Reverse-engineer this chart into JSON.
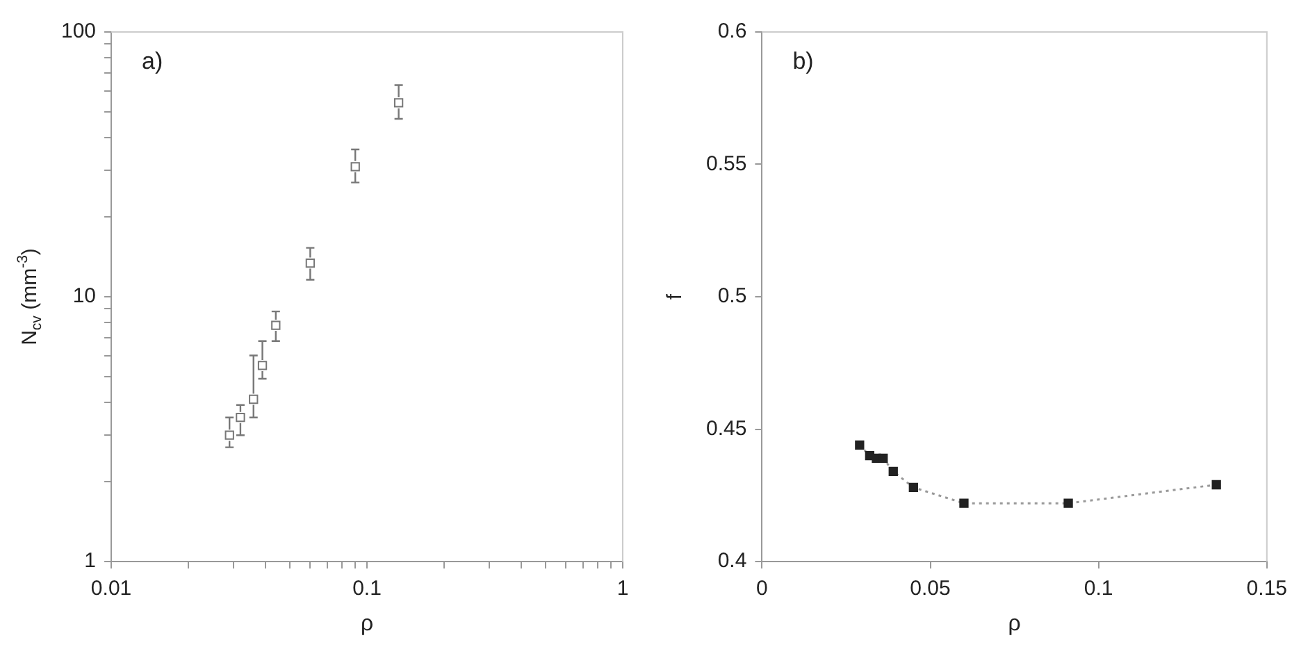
{
  "chart_data": [
    {
      "type": "scatter",
      "xlabel": "ρ",
      "ylabel": "N$_{cv}$ (mm$^{-3}$)",
      "annotations": [
        "a)"
      ],
      "log": "xy",
      "grid": false,
      "legend": false,
      "marker": "square",
      "xlim": [
        0.01,
        1
      ],
      "ylim": [
        1,
        100
      ],
      "xticks": [
        0.01,
        {
          "value": 0.02,
          "label": null
        },
        {
          "value": 0.03,
          "label": null
        },
        {
          "value": 0.04,
          "label": null
        },
        {
          "value": 0.05,
          "label": null
        },
        {
          "value": 0.06,
          "label": null
        },
        {
          "value": 0.07,
          "label": null
        },
        {
          "value": 0.08,
          "label": null
        },
        {
          "value": 0.09,
          "label": null
        },
        0.1,
        {
          "value": 0.2,
          "label": null
        },
        {
          "value": 0.3,
          "label": null
        },
        {
          "value": 0.4,
          "label": null
        },
        {
          "value": 0.5,
          "label": null
        },
        {
          "value": 0.6,
          "label": null
        },
        {
          "value": 0.7,
          "label": null
        },
        {
          "value": 0.8,
          "label": null
        },
        {
          "value": 0.9,
          "label": null
        },
        1
      ],
      "yticks": [
        1,
        {
          "value": 2,
          "label": null
        },
        {
          "value": 3,
          "label": null
        },
        {
          "value": 4,
          "label": null
        },
        {
          "value": 5,
          "label": null
        },
        {
          "value": 6,
          "label": null
        },
        {
          "value": 7,
          "label": null
        },
        {
          "value": 8,
          "label": null
        },
        {
          "value": 9,
          "label": null
        },
        10,
        {
          "value": 20,
          "label": null
        },
        {
          "value": 30,
          "label": null
        },
        {
          "value": 40,
          "label": null
        },
        {
          "value": 50,
          "label": null
        },
        {
          "value": 60,
          "label": null
        },
        {
          "value": 70,
          "label": null
        },
        {
          "value": 80,
          "label": null
        },
        {
          "value": 90,
          "label": null
        },
        100
      ],
      "series": [
        {
          "color": "#777777",
          "x": [
            0.029,
            0.032,
            0.036,
            0.039,
            0.044,
            0.06,
            0.09,
            0.133
          ],
          "values": [
            3.0,
            3.5,
            4.1,
            5.5,
            7.8,
            13.4,
            31,
            54
          ],
          "errors": [
            [
              2.7,
              3.5
            ],
            [
              3.0,
              3.9
            ],
            [
              3.5,
              6.0
            ],
            [
              4.9,
              6.8
            ],
            [
              6.8,
              8.8
            ],
            [
              11.6,
              15.3
            ],
            [
              27,
              36
            ],
            [
              47,
              63
            ]
          ]
        }
      ]
    },
    {
      "type": "line",
      "xlabel": "ρ",
      "ylabel": "f",
      "annotations": [
        "b)"
      ],
      "grid": false,
      "legend": false,
      "marker": "square",
      "line_style": "dotted",
      "xlim": [
        0,
        0.15
      ],
      "ylim": [
        0.4,
        0.6
      ],
      "xticks": [
        0,
        0.05,
        0.1,
        0.15
      ],
      "yticks": [
        0.4,
        0.45,
        0.5,
        0.55,
        0.6
      ],
      "series": [
        {
          "color": "#222222",
          "x": [
            0.029,
            0.032,
            0.034,
            0.036,
            0.039,
            0.045,
            0.06,
            0.091,
            0.135
          ],
          "values": [
            0.444,
            0.44,
            0.439,
            0.439,
            0.434,
            0.428,
            0.422,
            0.422,
            0.429
          ]
        }
      ]
    }
  ]
}
